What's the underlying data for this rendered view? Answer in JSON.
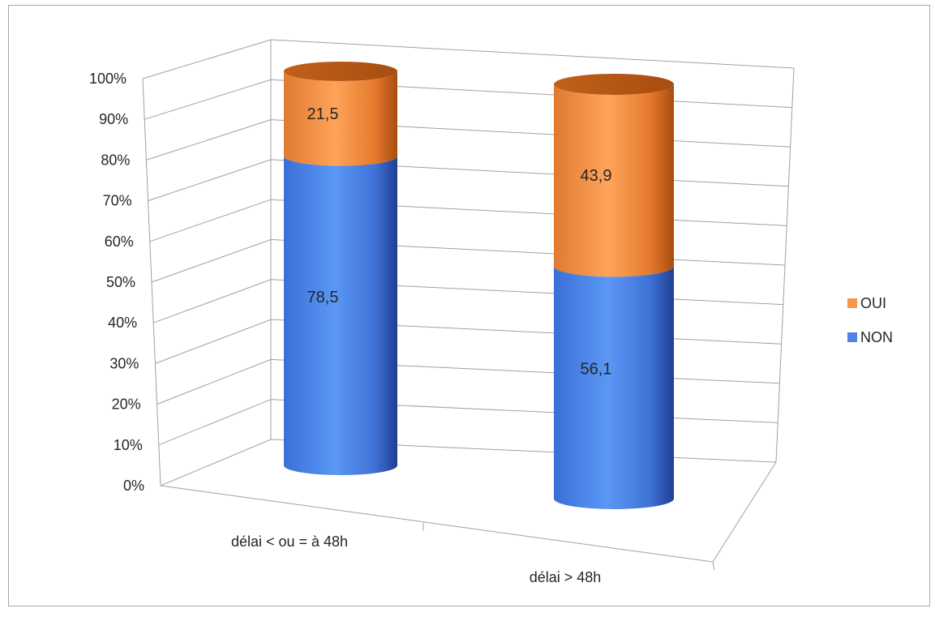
{
  "chart_data": {
    "type": "bar",
    "subtype": "stacked-100-percent-3d-cylinder",
    "title": "",
    "xlabel": "",
    "ylabel": "",
    "categories": [
      "délai < ou = à 48h",
      "délai > 48h"
    ],
    "series": [
      {
        "name": "NON",
        "color": "#4f81e8",
        "values": [
          78.5,
          56.1
        ],
        "labels": [
          "78,5",
          "56,1"
        ]
      },
      {
        "name": "OUI",
        "color": "#f79646",
        "values": [
          21.5,
          43.9
        ],
        "labels": [
          "21,5",
          "43,9"
        ]
      }
    ],
    "yticks": [
      "0%",
      "10%",
      "20%",
      "30%",
      "40%",
      "50%",
      "60%",
      "70%",
      "80%",
      "90%",
      "100%"
    ],
    "ylim": [
      0,
      100
    ],
    "grid": true,
    "legend": {
      "position": "right",
      "entries": [
        "OUI",
        "NON"
      ]
    }
  }
}
